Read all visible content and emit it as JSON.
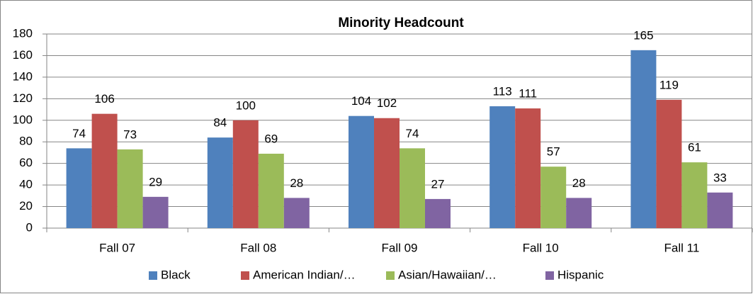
{
  "chart_data": {
    "type": "bar",
    "title": "Minority Headcount",
    "categories": [
      "Fall 07",
      "Fall 08",
      "Fall 09",
      "Fall 10",
      "Fall 11"
    ],
    "series": [
      {
        "name": "Black",
        "color": "#4f81bd",
        "values": [
          74,
          84,
          104,
          113,
          165
        ]
      },
      {
        "name": "American Indian/…",
        "color": "#c0504d",
        "values": [
          106,
          100,
          102,
          111,
          119
        ]
      },
      {
        "name": "Asian/Hawaiian/…",
        "color": "#9bbb59",
        "values": [
          73,
          69,
          74,
          57,
          61
        ]
      },
      {
        "name": "Hispanic",
        "color": "#8064a2",
        "values": [
          29,
          28,
          27,
          28,
          33
        ]
      }
    ],
    "ylim": [
      0,
      180
    ],
    "yticks": [
      0,
      20,
      40,
      60,
      80,
      100,
      120,
      140,
      160,
      180
    ],
    "grid": true,
    "legend": "bottom"
  }
}
